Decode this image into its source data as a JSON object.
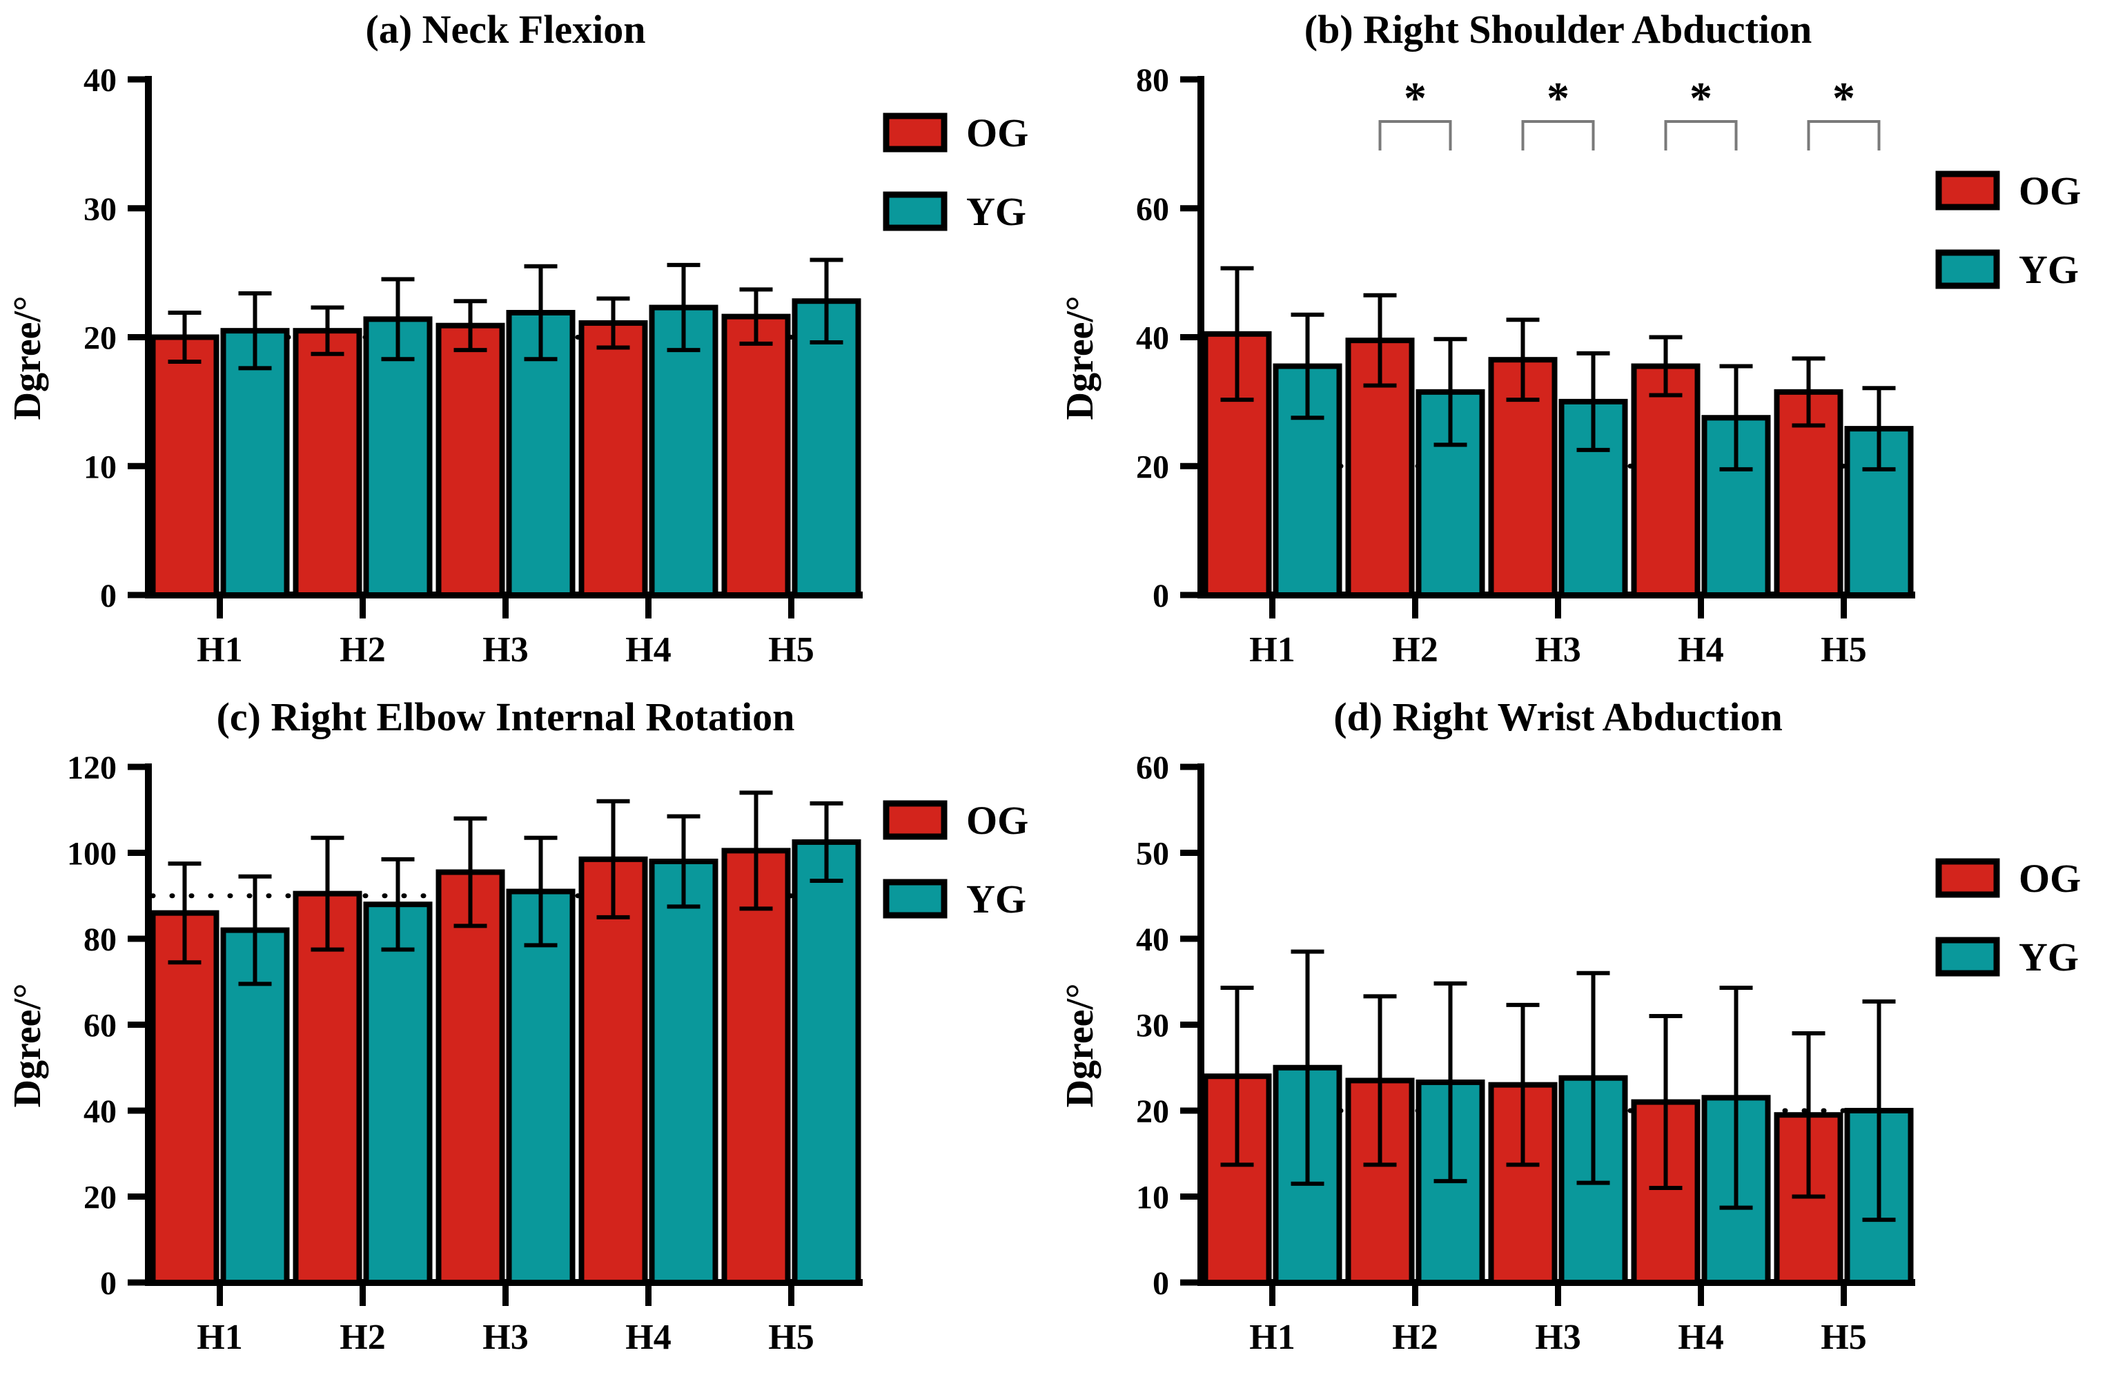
{
  "page": {
    "background": "#ffffff"
  },
  "colors": {
    "og": "#d3241c",
    "yg": "#0a989b",
    "bar_outline": "#000000",
    "axis": "#000000",
    "reference_line": "#000000",
    "bracket": "#7a7a7a"
  },
  "significance_marker": "*",
  "chart_data": [
    {
      "type": "bar",
      "panel": "a",
      "title": "(a) Neck Flexion",
      "ylabel": "Dgree/°",
      "categories": [
        "H1",
        "H2",
        "H3",
        "H4",
        "H5"
      ],
      "series": [
        {
          "name": "OG",
          "color_key": "og",
          "values": [
            20.0,
            20.5,
            20.9,
            21.1,
            21.6
          ],
          "errors": [
            1.9,
            1.8,
            1.9,
            1.9,
            2.1
          ]
        },
        {
          "name": "YG",
          "color_key": "yg",
          "values": [
            20.5,
            21.4,
            21.9,
            22.3,
            22.8
          ],
          "errors": [
            2.9,
            3.1,
            3.6,
            3.3,
            3.2
          ]
        }
      ],
      "legend": [
        "OG",
        "YG"
      ],
      "legend_position": "upper-right",
      "ylim": [
        0,
        40
      ],
      "yticks": [
        0,
        10,
        20,
        30,
        40
      ],
      "reference_line": 20,
      "grid": false,
      "significant_groups": []
    },
    {
      "type": "bar",
      "panel": "b",
      "title": "(b) Right Shoulder Abduction",
      "ylabel": "Dgree/°",
      "categories": [
        "H1",
        "H2",
        "H3",
        "H4",
        "H5"
      ],
      "series": [
        {
          "name": "OG",
          "color_key": "og",
          "values": [
            40.5,
            39.5,
            36.5,
            35.5,
            31.5
          ],
          "errors": [
            10.2,
            7.0,
            6.2,
            4.5,
            5.2
          ]
        },
        {
          "name": "YG",
          "color_key": "yg",
          "values": [
            35.5,
            31.5,
            30.0,
            27.5,
            25.8
          ],
          "errors": [
            8.0,
            8.2,
            7.5,
            8.0,
            6.3
          ]
        }
      ],
      "legend": [
        "OG",
        "YG"
      ],
      "legend_position": "upper-right",
      "ylim": [
        0,
        80
      ],
      "yticks": [
        0,
        20,
        40,
        60,
        80
      ],
      "reference_line": 20,
      "grid": false,
      "significant_groups": [
        "H2",
        "H3",
        "H4",
        "H5"
      ]
    },
    {
      "type": "bar",
      "panel": "c",
      "title": "(c) Right Elbow Internal Rotation",
      "ylabel": "Dgree/°",
      "categories": [
        "H1",
        "H2",
        "H3",
        "H4",
        "H5"
      ],
      "series": [
        {
          "name": "OG",
          "color_key": "og",
          "values": [
            86.0,
            90.5,
            95.5,
            98.5,
            100.5
          ],
          "errors": [
            11.5,
            13.0,
            12.5,
            13.5,
            13.5
          ]
        },
        {
          "name": "YG",
          "color_key": "yg",
          "values": [
            82.0,
            88.0,
            91.0,
            98.0,
            102.5
          ],
          "errors": [
            12.5,
            10.5,
            12.5,
            10.5,
            9.0
          ]
        }
      ],
      "legend": [
        "OG",
        "YG"
      ],
      "legend_position": "upper-right",
      "ylim": [
        0,
        120
      ],
      "yticks": [
        0,
        20,
        40,
        60,
        80,
        100,
        120
      ],
      "reference_line": 90,
      "grid": false,
      "significant_groups": []
    },
    {
      "type": "bar",
      "panel": "d",
      "title": "(d) Right Wrist Abduction",
      "ylabel": "Dgree/°",
      "categories": [
        "H1",
        "H2",
        "H3",
        "H4",
        "H5"
      ],
      "series": [
        {
          "name": "OG",
          "color_key": "og",
          "values": [
            24.0,
            23.5,
            23.0,
            21.0,
            19.5
          ],
          "errors": [
            10.3,
            9.8,
            9.3,
            10.0,
            9.5
          ]
        },
        {
          "name": "YG",
          "color_key": "yg",
          "values": [
            25.0,
            23.3,
            23.8,
            21.5,
            20.0
          ],
          "errors": [
            13.5,
            11.5,
            12.2,
            12.8,
            12.7
          ]
        }
      ],
      "legend": [
        "OG",
        "YG"
      ],
      "legend_position": "upper-right",
      "ylim": [
        0,
        60
      ],
      "yticks": [
        0,
        10,
        20,
        30,
        40,
        50,
        60
      ],
      "reference_line": 20,
      "grid": false,
      "significant_groups": []
    }
  ]
}
